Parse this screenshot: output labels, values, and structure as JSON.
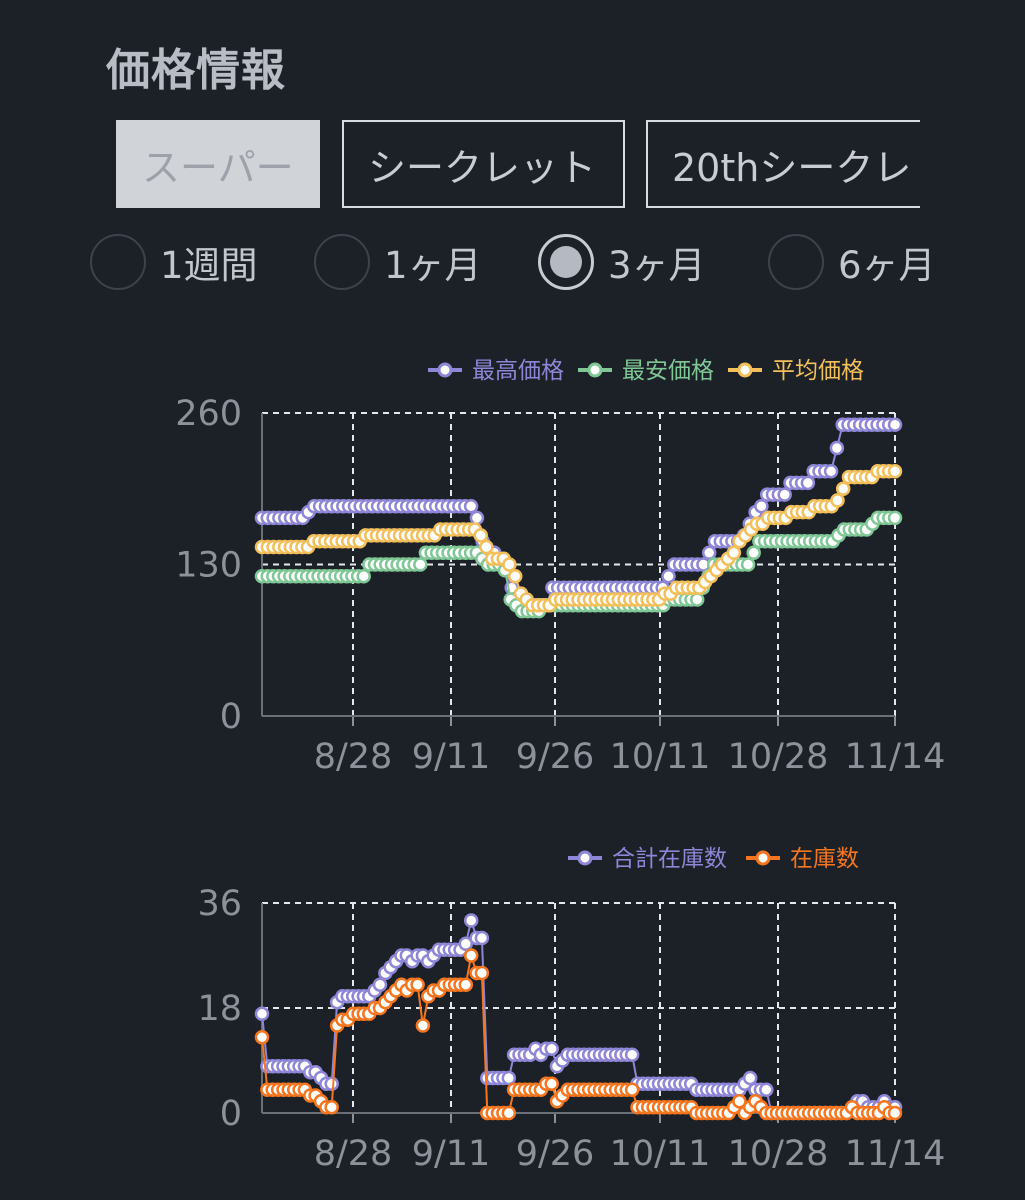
{
  "header": {
    "title": "価格情報"
  },
  "tabs": [
    {
      "label": "スーパー",
      "active": true
    },
    {
      "label": "シークレット",
      "active": false
    },
    {
      "label": "20thシークレ",
      "active": false
    }
  ],
  "periods": [
    {
      "label": "1週間",
      "checked": false
    },
    {
      "label": "1ヶ月",
      "checked": false
    },
    {
      "label": "3ヶ月",
      "checked": true
    },
    {
      "label": "6ヶ月",
      "checked": false
    }
  ],
  "chart_data": [
    {
      "type": "line",
      "x_tick_labels": [
        "8/28",
        "9/11",
        "9/26",
        "10/11",
        "10/28",
        "11/14"
      ],
      "y_ticks": [
        0,
        130,
        260
      ],
      "ylim": [
        0,
        260
      ],
      "grid": true,
      "legend_position": "top-right",
      "series": [
        {
          "name": "最高価格",
          "color": "#8e86d6",
          "values": [
            170,
            170,
            170,
            170,
            170,
            170,
            170,
            170,
            175,
            180,
            180,
            180,
            180,
            180,
            180,
            180,
            180,
            180,
            180,
            180,
            180,
            180,
            180,
            180,
            180,
            180,
            180,
            180,
            180,
            180,
            180,
            180,
            180,
            180,
            180,
            180,
            180,
            170,
            150,
            140,
            140,
            135,
            125,
            110,
            100,
            100,
            95,
            95,
            95,
            95,
            110,
            110,
            110,
            110,
            110,
            110,
            110,
            110,
            110,
            110,
            110,
            110,
            110,
            110,
            110,
            110,
            110,
            110,
            110,
            110,
            120,
            130,
            130,
            130,
            130,
            130,
            130,
            140,
            150,
            150,
            150,
            150,
            150,
            155,
            165,
            175,
            180,
            190,
            190,
            190,
            190,
            200,
            200,
            200,
            200,
            210,
            210,
            210,
            210,
            230,
            250,
            250,
            250,
            250,
            250,
            250,
            250,
            250,
            250,
            250
          ]
        },
        {
          "name": "最安価格",
          "color": "#7fc896",
          "values": [
            120,
            120,
            120,
            120,
            120,
            120,
            120,
            120,
            120,
            120,
            120,
            120,
            120,
            120,
            120,
            120,
            120,
            120,
            120,
            130,
            130,
            130,
            130,
            130,
            130,
            130,
            130,
            130,
            130,
            140,
            140,
            140,
            140,
            140,
            140,
            140,
            140,
            140,
            140,
            135,
            130,
            130,
            130,
            125,
            100,
            95,
            90,
            90,
            90,
            90,
            95,
            95,
            95,
            95,
            95,
            95,
            95,
            95,
            95,
            95,
            95,
            95,
            95,
            95,
            95,
            95,
            95,
            95,
            95,
            95,
            95,
            95,
            100,
            100,
            100,
            100,
            100,
            100,
            110,
            120,
            130,
            130,
            130,
            130,
            130,
            130,
            130,
            140,
            150,
            150,
            150,
            150,
            150,
            150,
            150,
            150,
            150,
            150,
            150,
            150,
            150,
            150,
            155,
            160,
            160,
            160,
            160,
            160,
            165,
            170,
            170,
            170,
            170
          ]
        },
        {
          "name": "平均価格",
          "color": "#f3bf5a",
          "values": [
            145,
            145,
            145,
            145,
            145,
            145,
            145,
            145,
            145,
            150,
            150,
            150,
            150,
            150,
            150,
            150,
            150,
            150,
            155,
            155,
            155,
            155,
            155,
            155,
            155,
            155,
            155,
            155,
            155,
            155,
            155,
            160,
            160,
            160,
            160,
            160,
            160,
            160,
            155,
            145,
            135,
            135,
            135,
            130,
            120,
            105,
            100,
            95,
            95,
            95,
            95,
            100,
            100,
            100,
            100,
            100,
            100,
            100,
            100,
            100,
            100,
            100,
            100,
            100,
            100,
            100,
            100,
            100,
            100,
            100,
            105,
            105,
            110,
            110,
            110,
            110,
            110,
            115,
            120,
            125,
            130,
            135,
            140,
            150,
            155,
            160,
            165,
            165,
            170,
            170,
            170,
            170,
            175,
            175,
            175,
            175,
            180,
            180,
            180,
            180,
            185,
            195,
            205,
            205,
            205,
            205,
            205,
            210,
            210,
            210,
            210
          ]
        }
      ]
    },
    {
      "type": "line",
      "x_tick_labels": [
        "8/28",
        "9/11",
        "9/26",
        "10/11",
        "10/28",
        "11/14"
      ],
      "y_ticks": [
        0,
        18,
        36
      ],
      "ylim": [
        0,
        36
      ],
      "grid": true,
      "legend_position": "top-right",
      "series": [
        {
          "name": "合計在庫数",
          "color": "#8e86d6",
          "values": [
            17,
            8,
            8,
            8,
            8,
            8,
            8,
            8,
            8,
            7,
            7,
            6,
            5,
            5,
            19,
            20,
            20,
            20,
            20,
            20,
            20,
            21,
            22,
            24,
            25,
            26,
            27,
            27,
            26,
            27,
            27,
            26,
            27,
            28,
            28,
            28,
            28,
            28,
            29,
            33,
            30,
            30,
            6,
            6,
            6,
            6,
            6,
            10,
            10,
            10,
            10,
            11,
            10,
            11,
            11,
            8,
            9,
            10,
            10,
            10,
            10,
            10,
            10,
            10,
            10,
            10,
            10,
            10,
            10,
            10,
            5,
            5,
            5,
            5,
            5,
            5,
            5,
            5,
            5,
            5,
            5,
            4,
            4,
            4,
            4,
            4,
            4,
            4,
            4,
            4,
            5,
            6,
            4,
            4,
            4,
            0,
            0,
            0,
            0,
            0,
            0,
            0,
            0,
            0,
            0,
            0,
            0,
            0,
            0,
            0,
            1,
            2,
            2,
            1,
            1,
            1,
            2,
            1,
            1
          ]
        },
        {
          "name": "在庫数",
          "color": "#f5761f",
          "values": [
            13,
            4,
            4,
            4,
            4,
            4,
            4,
            4,
            4,
            3,
            3,
            2,
            1,
            1,
            15,
            16,
            16,
            17,
            17,
            17,
            17,
            18,
            18,
            19,
            20,
            21,
            22,
            21,
            22,
            22,
            15,
            20,
            21,
            21,
            22,
            22,
            22,
            22,
            22,
            27,
            24,
            24,
            0,
            0,
            0,
            0,
            0,
            4,
            4,
            4,
            4,
            4,
            4,
            5,
            5,
            2,
            3,
            4,
            4,
            4,
            4,
            4,
            4,
            4,
            4,
            4,
            4,
            4,
            4,
            4,
            1,
            1,
            1,
            1,
            1,
            1,
            1,
            1,
            1,
            1,
            1,
            0,
            0,
            0,
            0,
            0,
            0,
            0,
            1,
            2,
            0,
            1,
            2,
            1,
            0,
            0,
            0,
            0,
            0,
            0,
            0,
            0,
            0,
            0,
            0,
            0,
            0,
            0,
            0,
            0,
            1,
            0,
            0,
            0,
            0,
            0,
            1,
            0,
            0
          ]
        }
      ]
    }
  ]
}
